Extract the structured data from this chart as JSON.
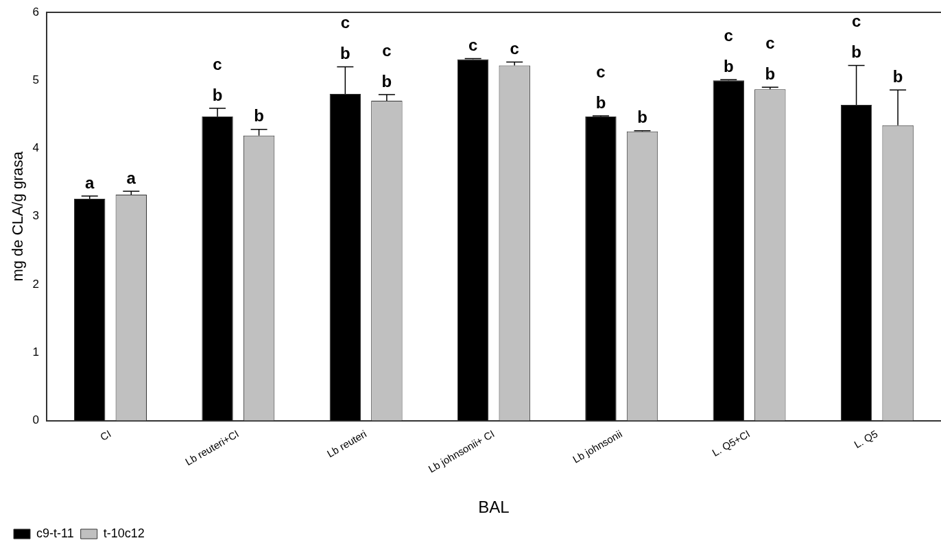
{
  "chart_data": {
    "type": "bar",
    "xlabel": "BAL",
    "ylabel": "mg de CLA/g grasa",
    "categories": [
      "CI",
      "Lb reuteri+CI",
      "Lb reuteri",
      "Lb johnsonii+ CI",
      "Lb johnsonii",
      "L. Q5+CI",
      "L. Q5"
    ],
    "series": [
      {
        "name": "c9-t-11",
        "color": "#000000",
        "values": [
          3.26,
          4.47,
          4.8,
          5.31,
          4.47,
          5.0,
          4.64
        ],
        "errors": [
          0.04,
          0.12,
          0.4,
          0.01,
          0.01,
          0.01,
          0.58
        ],
        "value_labels": [
          "a",
          "c\nb",
          "c\nb",
          "c",
          "c\nb",
          "c\nb",
          "c\nb"
        ]
      },
      {
        "name": "t-10c12",
        "color": "#c0c0c0",
        "values": [
          3.32,
          4.19,
          4.7,
          5.22,
          4.25,
          4.87,
          4.34
        ],
        "errors": [
          0.05,
          0.09,
          0.09,
          0.05,
          0.01,
          0.03,
          0.52
        ],
        "value_labels": [
          "a",
          "b",
          "c\nb",
          "c",
          "b",
          "c\nb",
          "b"
        ]
      }
    ],
    "ylim": [
      0,
      6
    ],
    "yticks": [
      0,
      1,
      2,
      3,
      4,
      5,
      6
    ],
    "grid": false,
    "legend": "bottom left"
  }
}
